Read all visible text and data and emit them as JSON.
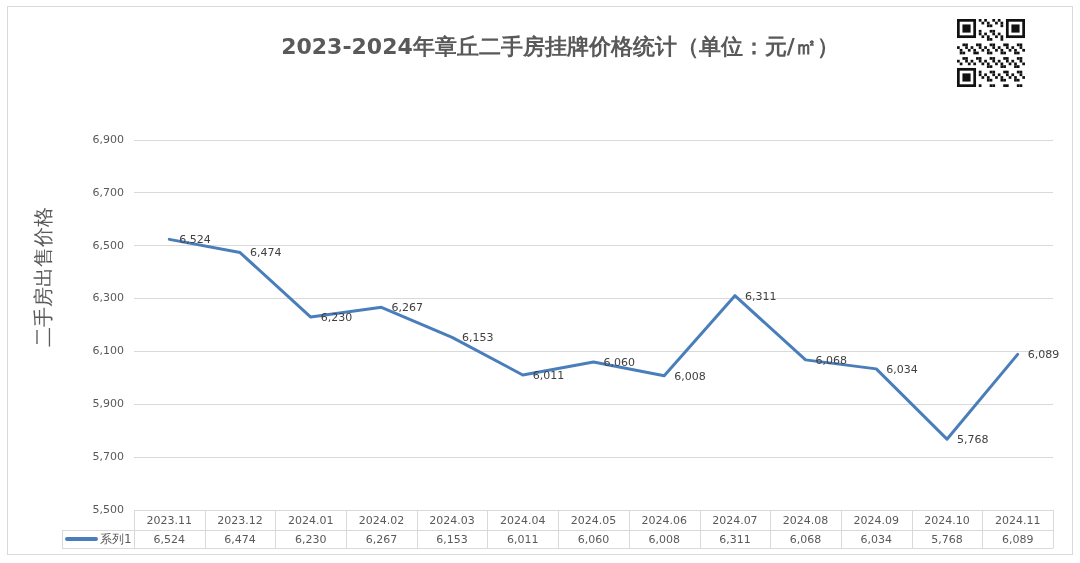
{
  "chart_data": {
    "type": "line",
    "title": "2023-2024年章丘二手房挂牌价格统计（单位：元/㎡）",
    "ylabel": "二手房出售价格",
    "categories": [
      "2023.11",
      "2023.12",
      "2024.01",
      "2024.02",
      "2024.03",
      "2024.04",
      "2024.05",
      "2024.06",
      "2024.07",
      "2024.08",
      "2024.09",
      "2024.10",
      "2024.11"
    ],
    "series": [
      {
        "name": "系列1",
        "color": "#4a7ebb",
        "values": [
          6524,
          6474,
          6230,
          6267,
          6153,
          6011,
          6060,
          6008,
          6311,
          6068,
          6034,
          5768,
          6089
        ],
        "value_labels": [
          "6,524",
          "6,474",
          "6,230",
          "6,267",
          "6,153",
          "6,011",
          "6,060",
          "6,008",
          "6,311",
          "6,068",
          "6,034",
          "5,768",
          "6,089"
        ]
      }
    ],
    "ylim": [
      5500,
      6900
    ],
    "yticks": [
      {
        "value": 5500,
        "label": "5,500"
      },
      {
        "value": 5700,
        "label": "5,700"
      },
      {
        "value": 5900,
        "label": "5,900"
      },
      {
        "value": 6100,
        "label": "6,100"
      },
      {
        "value": 6300,
        "label": "6,300"
      },
      {
        "value": 6500,
        "label": "6,500"
      },
      {
        "value": 6700,
        "label": "6,700"
      },
      {
        "value": 6900,
        "label": "6,900"
      }
    ],
    "grid": "y",
    "legend": "bottom left",
    "marker": "none",
    "line_style": "solid"
  }
}
